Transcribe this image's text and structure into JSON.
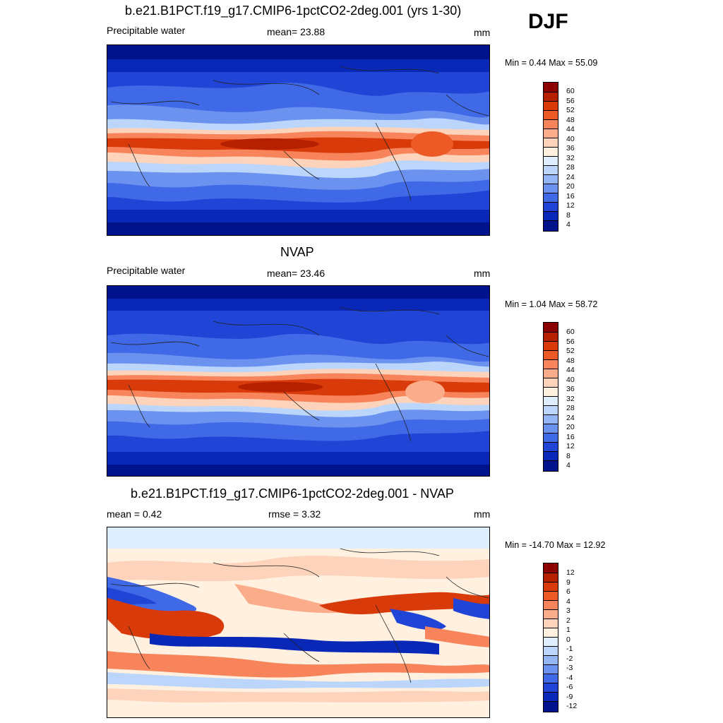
{
  "season": "DJF",
  "panels": [
    {
      "id": "model",
      "title": "b.e21.B1PCT.f19_g17.CMIP6-1pctCO2-2deg.001 (yrs 1-30)",
      "left_label": "Precipitable water",
      "center_label": "mean=  23.88",
      "units": "mm",
      "minmax": "Min =   0.44 Max =  55.09",
      "colorbar": {
        "ticks": [
          "60",
          "56",
          "52",
          "48",
          "44",
          "40",
          "36",
          "32",
          "28",
          "24",
          "20",
          "16",
          "12",
          "8",
          "4"
        ],
        "colors": [
          "#8b0000",
          "#b52000",
          "#d83a0a",
          "#ee5a25",
          "#f7845a",
          "#fbac8a",
          "#fdd3bb",
          "#fff0e0",
          "#dfeeff",
          "#bcd6fb",
          "#94b6f5",
          "#6c92f0",
          "#3f69e6",
          "#1f44d6",
          "#0a28b8",
          "#00128c"
        ]
      }
    },
    {
      "id": "obs",
      "title": "NVAP",
      "left_label": "Precipitable water",
      "center_label": "mean=  23.46",
      "units": "mm",
      "minmax": "Min =   1.04 Max =  58.72",
      "colorbar": {
        "ticks": [
          "60",
          "56",
          "52",
          "48",
          "44",
          "40",
          "36",
          "32",
          "28",
          "24",
          "20",
          "16",
          "12",
          "8",
          "4"
        ],
        "colors": [
          "#8b0000",
          "#b52000",
          "#d83a0a",
          "#ee5a25",
          "#f7845a",
          "#fbac8a",
          "#fdd3bb",
          "#fff0e0",
          "#dfeeff",
          "#bcd6fb",
          "#94b6f5",
          "#6c92f0",
          "#3f69e6",
          "#1f44d6",
          "#0a28b8",
          "#00128c"
        ]
      }
    },
    {
      "id": "diff",
      "title": "b.e21.B1PCT.f19_g17.CMIP6-1pctCO2-2deg.001 - NVAP",
      "left_label": "mean =   0.42",
      "center_label": "rmse =   3.32",
      "units": "mm",
      "minmax": "Min = -14.70 Max =  12.92",
      "colorbar": {
        "ticks": [
          "12",
          "9",
          "6",
          "4",
          "3",
          "2",
          "1",
          "0",
          "-1",
          "-2",
          "-3",
          "-4",
          "-6",
          "-9",
          "-12"
        ],
        "colors": [
          "#8b0000",
          "#b52000",
          "#d83a0a",
          "#ee5a25",
          "#f7845a",
          "#fbac8a",
          "#fdd3bb",
          "#fff0e0",
          "#dfeeff",
          "#bcd6fb",
          "#94b6f5",
          "#6c92f0",
          "#3f69e6",
          "#1f44d6",
          "#0a28b8",
          "#00128c"
        ]
      }
    }
  ]
}
